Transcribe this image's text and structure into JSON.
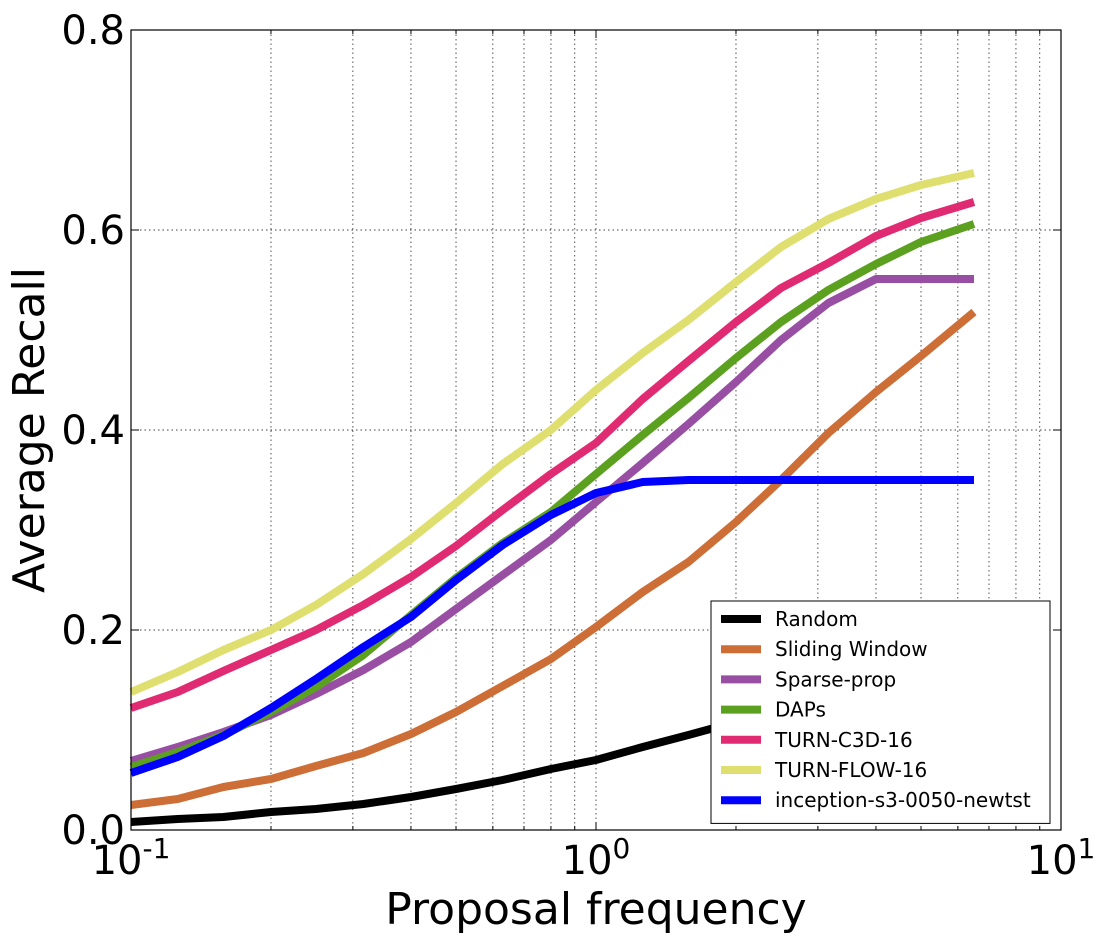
{
  "chart_data": {
    "type": "line",
    "xscale": "log",
    "xlabel": "Proposal frequency",
    "ylabel": "Average Recall",
    "xlim": [
      0.1,
      10
    ],
    "ylim": [
      0.0,
      0.8
    ],
    "grid": true,
    "legend_position": "bottom-right",
    "x_ticks": [
      {
        "value": 0.1,
        "base": "10",
        "exp": "-1"
      },
      {
        "value": 1,
        "base": "10",
        "exp": "0"
      },
      {
        "value": 10,
        "base": "10",
        "exp": "1"
      }
    ],
    "y_ticks": [
      {
        "value": 0.0,
        "label": "0.0"
      },
      {
        "value": 0.2,
        "label": "0.2"
      },
      {
        "value": 0.4,
        "label": "0.4"
      },
      {
        "value": 0.6,
        "label": "0.6"
      },
      {
        "value": 0.8,
        "label": "0.8"
      }
    ],
    "series": [
      {
        "name": "Random",
        "color": "#000000",
        "x": [
          0.1,
          0.126,
          0.158,
          0.2,
          0.25,
          0.316,
          0.4,
          0.5,
          0.63,
          0.8,
          1.0,
          1.26,
          1.58,
          2.0
        ],
        "y": [
          0.008,
          0.011,
          0.013,
          0.018,
          0.021,
          0.026,
          0.033,
          0.041,
          0.05,
          0.061,
          0.07,
          0.083,
          0.095,
          0.108
        ]
      },
      {
        "name": "Sliding Window",
        "color": "#cd6e37",
        "x": [
          0.1,
          0.126,
          0.158,
          0.2,
          0.25,
          0.316,
          0.4,
          0.5,
          0.63,
          0.8,
          1.0,
          1.26,
          1.58,
          2.0,
          2.5,
          3.16,
          4.0,
          5.0,
          6.5
        ],
        "y": [
          0.025,
          0.031,
          0.043,
          0.051,
          0.064,
          0.077,
          0.096,
          0.118,
          0.144,
          0.171,
          0.203,
          0.238,
          0.268,
          0.308,
          0.35,
          0.397,
          0.438,
          0.474,
          0.518
        ]
      },
      {
        "name": "Sparse-prop",
        "color": "#984ea3",
        "x": [
          0.1,
          0.126,
          0.158,
          0.2,
          0.25,
          0.316,
          0.4,
          0.5,
          0.63,
          0.8,
          1.0,
          1.26,
          1.58,
          2.0,
          2.5,
          3.16,
          4.0,
          5.0,
          6.5
        ],
        "y": [
          0.069,
          0.083,
          0.098,
          0.115,
          0.136,
          0.16,
          0.188,
          0.221,
          0.255,
          0.29,
          0.328,
          0.367,
          0.406,
          0.448,
          0.49,
          0.527,
          0.551,
          0.551,
          0.551
        ]
      },
      {
        "name": "DAPs",
        "color": "#5ca01f",
        "x": [
          0.1,
          0.126,
          0.158,
          0.2,
          0.25,
          0.316,
          0.4,
          0.5,
          0.63,
          0.8,
          1.0,
          1.26,
          1.58,
          2.0,
          2.5,
          3.16,
          4.0,
          5.0,
          6.5
        ],
        "y": [
          0.063,
          0.078,
          0.095,
          0.118,
          0.143,
          0.175,
          0.215,
          0.252,
          0.287,
          0.318,
          0.356,
          0.395,
          0.432,
          0.472,
          0.508,
          0.54,
          0.566,
          0.588,
          0.606
        ]
      },
      {
        "name": "TURN-C3D-16",
        "color": "#e02a71",
        "x": [
          0.1,
          0.126,
          0.158,
          0.2,
          0.25,
          0.316,
          0.4,
          0.5,
          0.63,
          0.8,
          1.0,
          1.26,
          1.58,
          2.0,
          2.5,
          3.16,
          4.0,
          5.0,
          6.5
        ],
        "y": [
          0.122,
          0.138,
          0.159,
          0.18,
          0.2,
          0.225,
          0.253,
          0.284,
          0.32,
          0.356,
          0.387,
          0.431,
          0.469,
          0.508,
          0.542,
          0.567,
          0.594,
          0.612,
          0.628
        ]
      },
      {
        "name": "TURN-FLOW-16",
        "color": "#dfdf6f",
        "x": [
          0.1,
          0.126,
          0.158,
          0.2,
          0.25,
          0.316,
          0.4,
          0.5,
          0.63,
          0.8,
          1.0,
          1.26,
          1.58,
          2.0,
          2.5,
          3.16,
          4.0,
          5.0,
          6.5
        ],
        "y": [
          0.138,
          0.158,
          0.18,
          0.2,
          0.225,
          0.256,
          0.291,
          0.327,
          0.366,
          0.4,
          0.44,
          0.477,
          0.51,
          0.548,
          0.583,
          0.611,
          0.631,
          0.645,
          0.657
        ]
      },
      {
        "name": "inception-s3-0050-newtst",
        "color": "#0000ff",
        "x": [
          0.1,
          0.126,
          0.158,
          0.2,
          0.25,
          0.316,
          0.4,
          0.5,
          0.63,
          0.8,
          1.0,
          1.26,
          1.58,
          2.0,
          2.5,
          3.16,
          4.0,
          5.0,
          6.5
        ],
        "y": [
          0.057,
          0.073,
          0.094,
          0.122,
          0.151,
          0.183,
          0.213,
          0.25,
          0.285,
          0.315,
          0.337,
          0.348,
          0.35,
          0.35,
          0.35,
          0.35,
          0.35,
          0.35,
          0.35
        ]
      }
    ]
  }
}
